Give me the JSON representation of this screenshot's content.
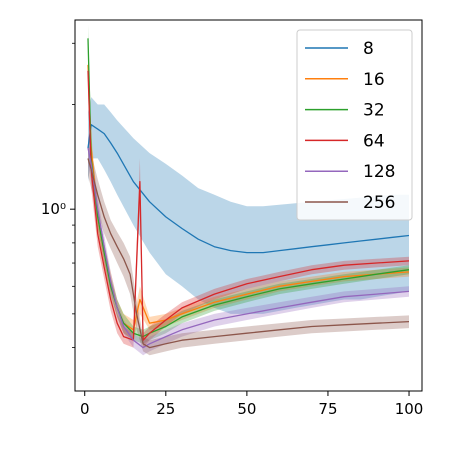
{
  "chart_data": {
    "type": "line",
    "title": "",
    "xlabel": "",
    "ylabel": "",
    "xlim": [
      -3,
      104
    ],
    "ylim": [
      0.3,
      3.5
    ],
    "y_scale": "log",
    "grid": false,
    "legend_position": "top-right",
    "x_ticks": [
      0,
      25,
      50,
      75,
      100
    ],
    "x_tick_labels": [
      "0",
      "25",
      "50",
      "75",
      "100"
    ],
    "y_major_ticks": [
      1
    ],
    "y_tick_labels": [
      "10⁰"
    ],
    "y_minor_ticks": [
      0.4,
      0.5,
      0.6,
      0.7,
      0.8,
      0.9,
      2,
      3
    ],
    "bands": "shaded region around each series",
    "series": [
      {
        "name": "8",
        "color": "#1f77b4",
        "x": [
          1,
          2,
          4,
          6,
          8,
          10,
          15,
          20,
          25,
          30,
          35,
          40,
          45,
          50,
          55,
          60,
          65,
          70,
          75,
          80,
          85,
          90,
          95,
          100
        ],
        "y": [
          1.5,
          1.75,
          1.7,
          1.65,
          1.55,
          1.45,
          1.2,
          1.05,
          0.95,
          0.88,
          0.82,
          0.78,
          0.76,
          0.75,
          0.75,
          0.76,
          0.77,
          0.78,
          0.79,
          0.8,
          0.81,
          0.82,
          0.83,
          0.84
        ],
        "low": [
          1.2,
          1.4,
          1.4,
          1.3,
          1.2,
          1.1,
          0.9,
          0.75,
          0.65,
          0.6,
          0.55,
          0.52,
          0.5,
          0.5,
          0.5,
          0.51,
          0.52,
          0.53,
          0.54,
          0.55,
          0.55,
          0.56,
          0.57,
          0.58
        ],
        "high": [
          1.9,
          2.1,
          2.0,
          2.0,
          1.9,
          1.8,
          1.6,
          1.45,
          1.35,
          1.25,
          1.15,
          1.1,
          1.05,
          1.02,
          1.02,
          1.03,
          1.04,
          1.05,
          1.06,
          1.07,
          1.08,
          1.09,
          1.1,
          1.1
        ]
      },
      {
        "name": "16",
        "color": "#ff7f0e",
        "x": [
          1,
          2,
          4,
          6,
          8,
          10,
          12,
          15,
          17,
          20,
          25,
          30,
          40,
          50,
          60,
          70,
          80,
          90,
          100
        ],
        "y": [
          2.6,
          1.5,
          0.95,
          0.75,
          0.62,
          0.52,
          0.47,
          0.45,
          0.55,
          0.47,
          0.48,
          0.5,
          0.54,
          0.57,
          0.6,
          0.62,
          0.64,
          0.65,
          0.66
        ],
        "low": [
          2.3,
          1.35,
          0.88,
          0.7,
          0.58,
          0.49,
          0.44,
          0.42,
          0.5,
          0.45,
          0.46,
          0.48,
          0.52,
          0.55,
          0.58,
          0.6,
          0.62,
          0.63,
          0.64
        ],
        "high": [
          2.9,
          1.65,
          1.02,
          0.8,
          0.66,
          0.55,
          0.5,
          0.48,
          0.6,
          0.49,
          0.5,
          0.52,
          0.56,
          0.59,
          0.62,
          0.64,
          0.66,
          0.67,
          0.68
        ]
      },
      {
        "name": "32",
        "color": "#2ca02c",
        "x": [
          1,
          2,
          4,
          6,
          8,
          10,
          12,
          15,
          18,
          20,
          25,
          30,
          40,
          50,
          60,
          70,
          80,
          90,
          100
        ],
        "y": [
          3.1,
          1.4,
          0.95,
          0.75,
          0.6,
          0.52,
          0.47,
          0.44,
          0.43,
          0.44,
          0.46,
          0.49,
          0.53,
          0.56,
          0.59,
          0.61,
          0.63,
          0.65,
          0.67
        ],
        "low": [
          2.8,
          1.25,
          0.88,
          0.7,
          0.56,
          0.49,
          0.44,
          0.42,
          0.41,
          0.42,
          0.44,
          0.47,
          0.51,
          0.54,
          0.57,
          0.59,
          0.61,
          0.63,
          0.65
        ],
        "high": [
          3.4,
          1.55,
          1.02,
          0.8,
          0.64,
          0.55,
          0.5,
          0.46,
          0.45,
          0.46,
          0.48,
          0.51,
          0.55,
          0.58,
          0.61,
          0.63,
          0.65,
          0.67,
          0.69
        ]
      },
      {
        "name": "64",
        "color": "#d62728",
        "x": [
          1,
          2,
          4,
          6,
          8,
          10,
          12,
          15,
          17,
          18,
          20,
          25,
          30,
          40,
          50,
          60,
          70,
          80,
          90,
          100
        ],
        "y": [
          2.5,
          1.3,
          0.85,
          0.68,
          0.55,
          0.47,
          0.43,
          0.42,
          1.2,
          0.42,
          0.44,
          0.48,
          0.52,
          0.57,
          0.61,
          0.64,
          0.67,
          0.69,
          0.7,
          0.71
        ],
        "low": [
          2.2,
          1.15,
          0.78,
          0.63,
          0.51,
          0.44,
          0.41,
          0.4,
          1.0,
          0.4,
          0.42,
          0.46,
          0.5,
          0.55,
          0.59,
          0.62,
          0.65,
          0.67,
          0.68,
          0.69
        ],
        "high": [
          2.8,
          1.45,
          0.92,
          0.73,
          0.59,
          0.5,
          0.46,
          0.44,
          1.4,
          0.44,
          0.46,
          0.5,
          0.54,
          0.59,
          0.63,
          0.66,
          0.69,
          0.71,
          0.72,
          0.73
        ]
      },
      {
        "name": "128",
        "color": "#9467bd",
        "x": [
          1,
          2,
          4,
          6,
          8,
          10,
          12,
          15,
          18,
          20,
          25,
          30,
          40,
          50,
          60,
          70,
          80,
          90,
          100
        ],
        "y": [
          1.5,
          1.35,
          1.0,
          0.78,
          0.62,
          0.52,
          0.46,
          0.42,
          0.4,
          0.41,
          0.43,
          0.45,
          0.48,
          0.5,
          0.52,
          0.54,
          0.56,
          0.57,
          0.58
        ],
        "low": [
          1.35,
          1.2,
          0.92,
          0.72,
          0.58,
          0.49,
          0.44,
          0.4,
          0.38,
          0.39,
          0.41,
          0.43,
          0.46,
          0.48,
          0.5,
          0.52,
          0.54,
          0.55,
          0.56
        ],
        "high": [
          1.65,
          1.5,
          1.08,
          0.84,
          0.66,
          0.55,
          0.48,
          0.44,
          0.42,
          0.43,
          0.45,
          0.47,
          0.5,
          0.52,
          0.54,
          0.56,
          0.58,
          0.59,
          0.6
        ]
      },
      {
        "name": "256",
        "color": "#8c564b",
        "x": [
          1,
          2,
          4,
          6,
          8,
          10,
          12,
          14,
          16,
          18,
          20,
          25,
          30,
          40,
          50,
          60,
          70,
          80,
          90,
          100
        ],
        "y": [
          1.4,
          1.3,
          1.1,
          0.95,
          0.85,
          0.78,
          0.72,
          0.65,
          0.5,
          0.41,
          0.4,
          0.41,
          0.42,
          0.43,
          0.44,
          0.45,
          0.46,
          0.465,
          0.47,
          0.475
        ],
        "low": [
          1.25,
          1.15,
          0.98,
          0.85,
          0.77,
          0.7,
          0.64,
          0.57,
          0.45,
          0.39,
          0.38,
          0.39,
          0.4,
          0.41,
          0.42,
          0.43,
          0.44,
          0.445,
          0.45,
          0.455
        ],
        "high": [
          1.55,
          1.45,
          1.22,
          1.05,
          0.93,
          0.86,
          0.8,
          0.73,
          0.55,
          0.43,
          0.42,
          0.43,
          0.44,
          0.45,
          0.46,
          0.47,
          0.48,
          0.485,
          0.49,
          0.495
        ]
      }
    ]
  }
}
